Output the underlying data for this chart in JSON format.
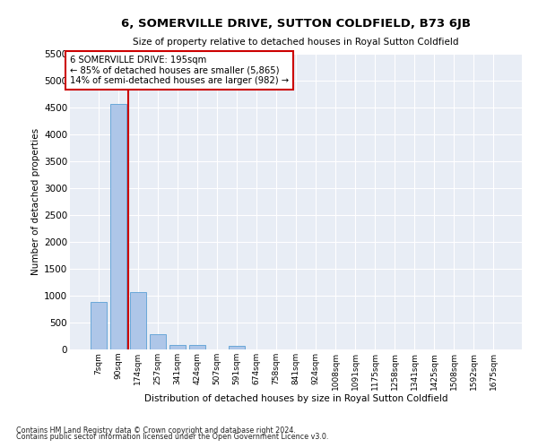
{
  "title": "6, SOMERVILLE DRIVE, SUTTON COLDFIELD, B73 6JB",
  "subtitle": "Size of property relative to detached houses in Royal Sutton Coldfield",
  "xlabel": "Distribution of detached houses by size in Royal Sutton Coldfield",
  "ylabel": "Number of detached properties",
  "footnote1": "Contains HM Land Registry data © Crown copyright and database right 2024.",
  "footnote2": "Contains public sector information licensed under the Open Government Licence v3.0.",
  "annotation_line1": "6 SOMERVILLE DRIVE: 195sqm",
  "annotation_line2": "← 85% of detached houses are smaller (5,865)",
  "annotation_line3": "14% of semi-detached houses are larger (982) →",
  "bar_color": "#aec6e8",
  "bar_edge_color": "#5a9fd4",
  "vline_color": "#cc0000",
  "vline_x": 1.5,
  "bg_color": "#e8edf5",
  "categories": [
    "7sqm",
    "90sqm",
    "174sqm",
    "257sqm",
    "341sqm",
    "424sqm",
    "507sqm",
    "591sqm",
    "674sqm",
    "758sqm",
    "841sqm",
    "924sqm",
    "1008sqm",
    "1091sqm",
    "1175sqm",
    "1258sqm",
    "1341sqm",
    "1425sqm",
    "1508sqm",
    "1592sqm",
    "1675sqm"
  ],
  "values": [
    880,
    4560,
    1060,
    280,
    90,
    80,
    0,
    60,
    0,
    0,
    0,
    0,
    0,
    0,
    0,
    0,
    0,
    0,
    0,
    0,
    0
  ],
  "ylim": [
    0,
    5500
  ],
  "yticks": [
    0,
    500,
    1000,
    1500,
    2000,
    2500,
    3000,
    3500,
    4000,
    4500,
    5000,
    5500
  ]
}
